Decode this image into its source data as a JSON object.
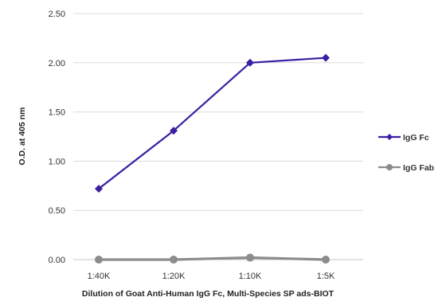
{
  "chart_data": {
    "type": "line",
    "title": "",
    "xlabel": "Dilution of Goat Anti-Human IgG Fc, Multi-Species SP ads-BIOT",
    "ylabel": "O.D. at 405 nm",
    "categories": [
      "1:40K",
      "1:20K",
      "1:10K",
      "1:5K"
    ],
    "ylim": [
      0,
      2.5
    ],
    "yticks": [
      "0.00",
      "0.50",
      "1.00",
      "1.50",
      "2.00",
      "2.50"
    ],
    "grid": true,
    "legend_position": "right",
    "series": [
      {
        "name": "IgG Fc",
        "values": [
          0.72,
          1.31,
          2.0,
          2.05
        ],
        "color": "#3b1fa3",
        "marker": "diamond"
      },
      {
        "name": "IgG Fab",
        "values": [
          0.0,
          0.0,
          0.02,
          0.0
        ],
        "color": "#8c8c8c",
        "marker": "circle"
      }
    ]
  }
}
